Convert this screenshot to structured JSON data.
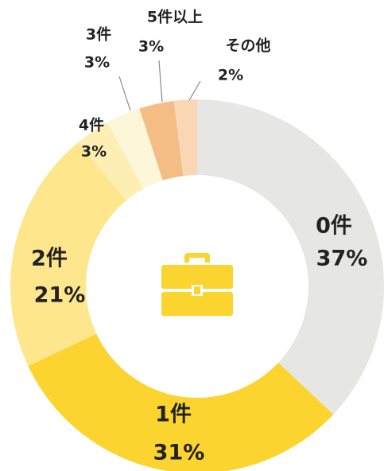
{
  "chart_data": {
    "type": "donut",
    "categories": [
      "0件",
      "1件",
      "2件",
      "4件",
      "3件",
      "5件以上",
      "その他"
    ],
    "values": [
      37,
      31,
      21,
      3,
      3,
      3,
      2
    ],
    "value_labels": [
      "37%",
      "31%",
      "21%",
      "3%",
      "3%",
      "3%",
      "2%"
    ],
    "colors": [
      "#e6e6e4",
      "#fbd42f",
      "#fde68b",
      "#fdeeb3",
      "#fef6d8",
      "#f5bd86",
      "#f9d7b4"
    ]
  }
}
